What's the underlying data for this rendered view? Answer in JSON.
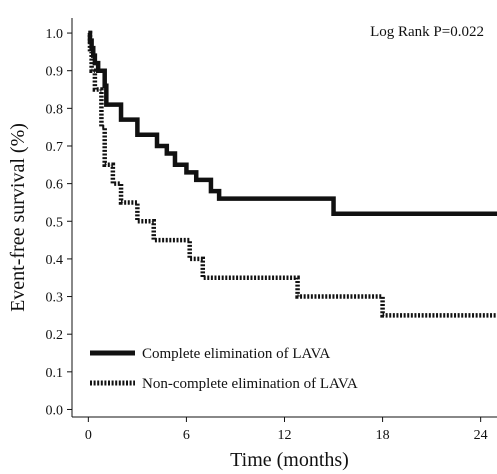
{
  "chart_data": {
    "type": "line",
    "step": true,
    "ylabel": "Event-free survival (%)",
    "xlabel": "Time (months)",
    "annotation": "Log Rank P=0.022",
    "xlim": [
      -1,
      25
    ],
    "ylim": [
      -0.02,
      1.04
    ],
    "xticks": [
      0,
      6,
      12,
      18,
      24
    ],
    "yticks": [
      0.0,
      0.1,
      0.2,
      0.3,
      0.4,
      0.5,
      0.6,
      0.7,
      0.8,
      0.9,
      1.0
    ],
    "ytick_labels": [
      "0.0",
      "0.1",
      "0.2",
      "0.3",
      "0.4",
      "0.5",
      "0.6",
      "0.7",
      "0.8",
      "0.9",
      "1.0"
    ],
    "legend_position": "bottom-left",
    "series": [
      {
        "name": "Complete elimination of LAVA",
        "style": "solid",
        "color": "#111111",
        "points": [
          [
            0,
            1.0
          ],
          [
            0.1,
            0.98
          ],
          [
            0.2,
            0.96
          ],
          [
            0.3,
            0.94
          ],
          [
            0.4,
            0.92
          ],
          [
            0.6,
            0.9
          ],
          [
            1.0,
            0.86
          ],
          [
            1.1,
            0.81
          ],
          [
            2.0,
            0.77
          ],
          [
            3.0,
            0.73
          ],
          [
            4.2,
            0.7
          ],
          [
            4.8,
            0.68
          ],
          [
            5.3,
            0.65
          ],
          [
            6.0,
            0.63
          ],
          [
            6.6,
            0.61
          ],
          [
            7.5,
            0.58
          ],
          [
            8.0,
            0.56
          ],
          [
            15.0,
            0.52
          ],
          [
            25.0,
            0.52
          ]
        ]
      },
      {
        "name": "Non-complete elimination of LAVA",
        "style": "dotted",
        "color": "#111111",
        "points": [
          [
            0,
            1.0
          ],
          [
            0.1,
            0.95
          ],
          [
            0.2,
            0.9
          ],
          [
            0.4,
            0.85
          ],
          [
            0.8,
            0.75
          ],
          [
            1.0,
            0.65
          ],
          [
            1.5,
            0.6
          ],
          [
            2.0,
            0.55
          ],
          [
            3.0,
            0.5
          ],
          [
            4.0,
            0.45
          ],
          [
            6.2,
            0.4
          ],
          [
            7.0,
            0.35
          ],
          [
            12.8,
            0.3
          ],
          [
            18.0,
            0.25
          ],
          [
            25.0,
            0.25
          ]
        ]
      }
    ]
  }
}
